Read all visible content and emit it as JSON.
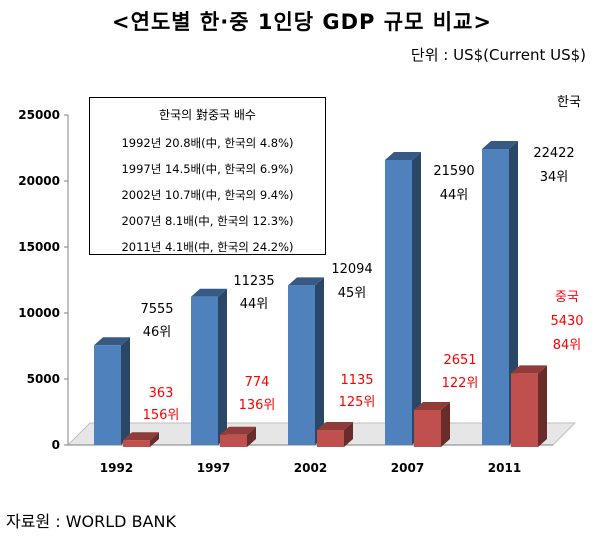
{
  "title": "<연도별 한·중 1인당 GDP 규모 비교>",
  "unit": "단위 : US$(Current US$)",
  "source": "자료원 : WORLD BANK",
  "note": {
    "title": "한국의 對중국 배수",
    "lines": [
      "1992년  20.8배(中, 한국의 4.8%)",
      "1997년  14.5배(中, 한국의 6.9%)",
      "2002년  10.7배(中, 한국의 9.4%)",
      "2007년  8.1배(中, 한국의 12.3%)",
      "2011년  4.1배(中, 한국의 24.2%)"
    ]
  },
  "chart_data": {
    "type": "bar",
    "categories": [
      "1992",
      "1997",
      "2002",
      "2007",
      "2011"
    ],
    "ylim": [
      0,
      25000
    ],
    "yticks": [
      "0",
      "5000",
      "10000",
      "15000",
      "20000",
      "25000"
    ],
    "series": [
      {
        "name": "한국",
        "color": "#4f81bd",
        "values": [
          7555,
          11235,
          12094,
          21590,
          22422
        ],
        "value_labels": [
          "7555",
          "11235",
          "12094",
          "21590",
          "22422"
        ],
        "rank_labels": [
          "46위",
          "44위",
          "45위",
          "44위",
          "34위"
        ]
      },
      {
        "name": "중국",
        "color": "#c0504d",
        "values": [
          363,
          774,
          1135,
          2651,
          5430
        ],
        "value_labels": [
          "363",
          "774",
          "1135",
          "2651",
          "5430"
        ],
        "rank_labels": [
          "156위",
          "136위",
          "125위",
          "122위",
          "84위"
        ]
      }
    ]
  }
}
